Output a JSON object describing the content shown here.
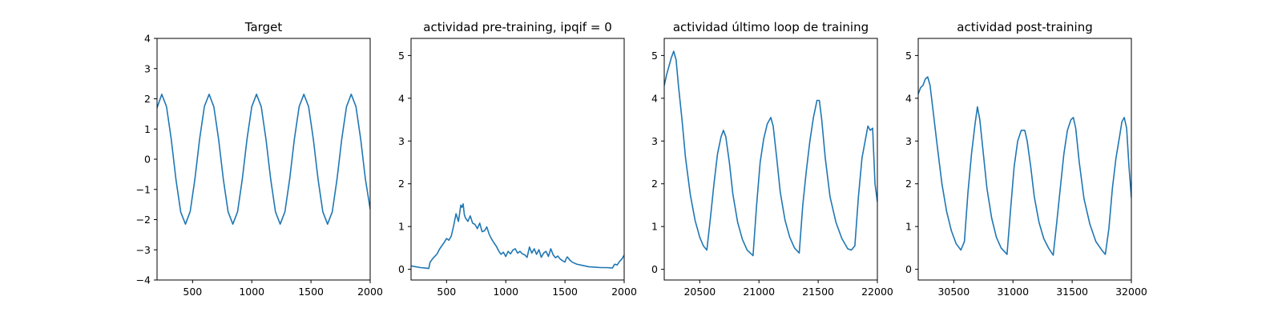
{
  "colors": {
    "line": "#1f77b4",
    "axes": "#000000",
    "background": "#ffffff"
  },
  "chart_data": [
    {
      "type": "line",
      "title": "Target",
      "xlabel": "",
      "ylabel": "",
      "xlim": [
        200,
        2000
      ],
      "ylim": [
        -4,
        4
      ],
      "xticks": [
        500,
        1000,
        1500,
        2000
      ],
      "yticks": [
        -4,
        -3,
        -2,
        -1,
        0,
        1,
        2,
        3,
        4
      ],
      "xtick_labels": [
        "500",
        "1000",
        "1500",
        "2000"
      ],
      "ytick_labels": [
        "−4",
        "−3",
        "−2",
        "−1",
        "0",
        "1",
        "2",
        "3",
        "4"
      ],
      "grid": false,
      "series": [
        {
          "x": [
            200,
            240,
            280,
            320,
            360,
            400,
            440,
            480,
            520,
            560,
            600,
            640,
            680,
            720,
            760,
            800,
            840,
            880,
            920,
            960,
            1000,
            1040,
            1080,
            1120,
            1160,
            1200,
            1240,
            1280,
            1320,
            1360,
            1400,
            1440,
            1480,
            1520,
            1560,
            1600,
            1640,
            1680,
            1720,
            1760,
            1800,
            1840,
            1880,
            1920,
            1960,
            2000
          ],
          "y": [
            1.7,
            2.15,
            1.74,
            0.66,
            -0.68,
            -1.75,
            -2.15,
            -1.73,
            -0.65,
            0.68,
            1.75,
            2.15,
            1.73,
            0.66,
            -0.67,
            -1.74,
            -2.15,
            -1.74,
            -0.66,
            0.67,
            1.74,
            2.15,
            1.74,
            0.66,
            -0.67,
            -1.74,
            -2.15,
            -1.74,
            -0.66,
            0.67,
            1.74,
            2.15,
            1.74,
            0.66,
            -0.67,
            -1.74,
            -2.15,
            -1.74,
            -0.66,
            0.67,
            1.74,
            2.15,
            1.74,
            0.66,
            -0.67,
            -1.65
          ]
        }
      ]
    },
    {
      "type": "line",
      "title": "actividad pre-training, ipqif = 0",
      "xlabel": "",
      "ylabel": "",
      "xlim": [
        200,
        2000
      ],
      "ylim": [
        -0.25,
        5.4
      ],
      "xticks": [
        500,
        1000,
        1500,
        2000
      ],
      "yticks": [
        0,
        1,
        2,
        3,
        4,
        5
      ],
      "xtick_labels": [
        "500",
        "1000",
        "1500",
        "2000"
      ],
      "ytick_labels": [
        "0",
        "1",
        "2",
        "3",
        "4",
        "5"
      ],
      "grid": false,
      "series": [
        {
          "x": [
            200,
            240,
            280,
            320,
            350,
            360,
            380,
            400,
            420,
            440,
            460,
            480,
            500,
            520,
            540,
            560,
            580,
            600,
            610,
            620,
            630,
            640,
            650,
            660,
            680,
            700,
            720,
            740,
            760,
            780,
            800,
            820,
            840,
            860,
            880,
            900,
            920,
            940,
            960,
            980,
            1000,
            1020,
            1040,
            1060,
            1080,
            1100,
            1120,
            1140,
            1160,
            1180,
            1200,
            1220,
            1240,
            1260,
            1280,
            1300,
            1320,
            1340,
            1360,
            1380,
            1400,
            1420,
            1440,
            1460,
            1480,
            1500,
            1510,
            1520,
            1540,
            1560,
            1600,
            1650,
            1700,
            1750,
            1800,
            1850,
            1900,
            1920,
            1940,
            1960,
            1980,
            2000
          ],
          "y": [
            0.08,
            0.06,
            0.04,
            0.03,
            0.02,
            0.16,
            0.24,
            0.3,
            0.36,
            0.47,
            0.55,
            0.63,
            0.72,
            0.68,
            0.78,
            1.02,
            1.3,
            1.12,
            1.3,
            1.5,
            1.45,
            1.53,
            1.28,
            1.2,
            1.12,
            1.25,
            1.08,
            1.05,
            0.95,
            1.08,
            0.88,
            0.9,
            0.99,
            0.82,
            0.71,
            0.62,
            0.54,
            0.43,
            0.35,
            0.4,
            0.3,
            0.42,
            0.36,
            0.45,
            0.48,
            0.38,
            0.42,
            0.36,
            0.34,
            0.28,
            0.52,
            0.38,
            0.48,
            0.35,
            0.46,
            0.28,
            0.38,
            0.42,
            0.3,
            0.48,
            0.34,
            0.27,
            0.31,
            0.24,
            0.2,
            0.17,
            0.25,
            0.29,
            0.22,
            0.17,
            0.12,
            0.09,
            0.06,
            0.05,
            0.04,
            0.04,
            0.03,
            0.12,
            0.1,
            0.18,
            0.24,
            0.33
          ]
        }
      ]
    },
    {
      "type": "line",
      "title": "actividad último loop de training",
      "xlabel": "",
      "ylabel": "",
      "xlim": [
        20200,
        22000
      ],
      "ylim": [
        -0.25,
        5.4
      ],
      "xticks": [
        20500,
        21000,
        21500,
        22000
      ],
      "yticks": [
        0,
        1,
        2,
        3,
        4,
        5
      ],
      "xtick_labels": [
        "20500",
        "21000",
        "21500",
        "22000"
      ],
      "ytick_labels": [
        "0",
        "1",
        "2",
        "3",
        "4",
        "5"
      ],
      "grid": false,
      "series": [
        {
          "x": [
            20200,
            20220,
            20240,
            20260,
            20280,
            20300,
            20320,
            20350,
            20380,
            20420,
            20460,
            20500,
            20530,
            20560,
            20590,
            20620,
            20650,
            20680,
            20700,
            20720,
            20750,
            20780,
            20820,
            20860,
            20900,
            20950,
            20980,
            21010,
            21040,
            21070,
            21100,
            21120,
            21150,
            21180,
            21220,
            21260,
            21300,
            21340,
            21370,
            21400,
            21430,
            21460,
            21490,
            21510,
            21530,
            21560,
            21600,
            21650,
            21700,
            21750,
            21780,
            21810,
            21840,
            21870,
            21900,
            21920,
            21940,
            21960,
            21980,
            22000
          ],
          "y": [
            4.3,
            4.55,
            4.75,
            4.95,
            5.1,
            4.9,
            4.3,
            3.5,
            2.6,
            1.75,
            1.15,
            0.75,
            0.55,
            0.45,
            1.2,
            2.0,
            2.7,
            3.1,
            3.25,
            3.1,
            2.5,
            1.75,
            1.1,
            0.7,
            0.45,
            0.32,
            1.5,
            2.5,
            3.05,
            3.4,
            3.55,
            3.35,
            2.6,
            1.8,
            1.15,
            0.75,
            0.5,
            0.38,
            1.5,
            2.3,
            3.0,
            3.55,
            3.95,
            3.95,
            3.5,
            2.6,
            1.7,
            1.1,
            0.72,
            0.48,
            0.45,
            0.55,
            1.7,
            2.6,
            3.05,
            3.35,
            3.25,
            3.3,
            2.0,
            1.58
          ]
        }
      ]
    },
    {
      "type": "line",
      "title": "actividad post-training",
      "xlabel": "",
      "ylabel": "",
      "xlim": [
        30200,
        32000
      ],
      "ylim": [
        -0.25,
        5.4
      ],
      "xticks": [
        30500,
        31000,
        31500,
        32000
      ],
      "yticks": [
        0,
        1,
        2,
        3,
        4,
        5
      ],
      "xtick_labels": [
        "30500",
        "31000",
        "31500",
        "32000"
      ],
      "ytick_labels": [
        "0",
        "1",
        "2",
        "3",
        "4",
        "5"
      ],
      "grid": false,
      "series": [
        {
          "x": [
            30200,
            30220,
            30240,
            30260,
            30280,
            30300,
            30330,
            30360,
            30400,
            30440,
            30480,
            30520,
            30560,
            30590,
            30620,
            30650,
            30680,
            30700,
            30720,
            30750,
            30780,
            30820,
            30860,
            30900,
            30950,
            30980,
            31010,
            31040,
            31070,
            31100,
            31120,
            31150,
            31180,
            31220,
            31260,
            31300,
            31340,
            31370,
            31400,
            31430,
            31460,
            31490,
            31510,
            31530,
            31560,
            31600,
            31650,
            31700,
            31750,
            31780,
            31810,
            31840,
            31870,
            31900,
            31920,
            31940,
            31960,
            31980,
            32000
          ],
          "y": [
            4.1,
            4.25,
            4.3,
            4.45,
            4.5,
            4.3,
            3.6,
            2.9,
            2.0,
            1.35,
            0.9,
            0.6,
            0.45,
            0.65,
            1.8,
            2.7,
            3.4,
            3.8,
            3.5,
            2.7,
            1.9,
            1.2,
            0.75,
            0.5,
            0.35,
            1.4,
            2.4,
            3.0,
            3.25,
            3.25,
            3.0,
            2.4,
            1.7,
            1.1,
            0.72,
            0.5,
            0.33,
            1.1,
            1.9,
            2.7,
            3.25,
            3.5,
            3.55,
            3.3,
            2.5,
            1.65,
            1.05,
            0.65,
            0.45,
            0.35,
            0.95,
            1.9,
            2.6,
            3.1,
            3.45,
            3.55,
            3.3,
            2.4,
            1.68
          ]
        }
      ]
    }
  ]
}
